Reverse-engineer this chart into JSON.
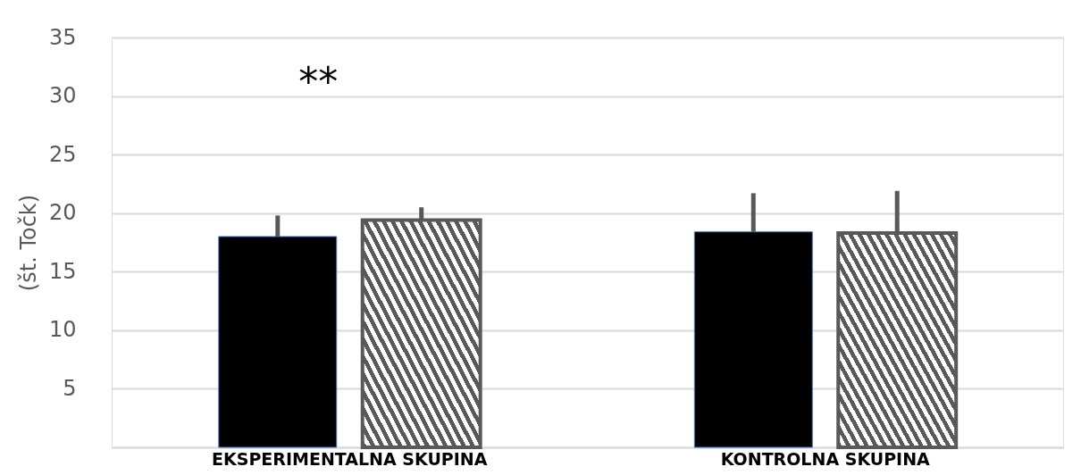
{
  "chart_data": {
    "type": "bar",
    "ylabel": "(št. Točk)",
    "categories": [
      "EKSPERIMENTALNA SKUPINA",
      "KONTROLNA SKUPINA"
    ],
    "series": [
      {
        "color": "#000000",
        "values": [
          18.0,
          18.4
        ],
        "errors": [
          [
            18.0,
            19.8
          ],
          [
            18.4,
            21.7
          ]
        ]
      },
      {
        "color": "#595959",
        "values": [
          19.4,
          18.3
        ],
        "errors": [
          [
            19.4,
            20.5
          ],
          [
            18.3,
            21.9
          ]
        ]
      }
    ],
    "ylim": [
      0,
      35
    ],
    "yticks": [
      {
        "value": 0,
        "label": null
      },
      5,
      10,
      15,
      20,
      25,
      30,
      35
    ],
    "grid": "y",
    "annotations": [
      "**"
    ]
  }
}
